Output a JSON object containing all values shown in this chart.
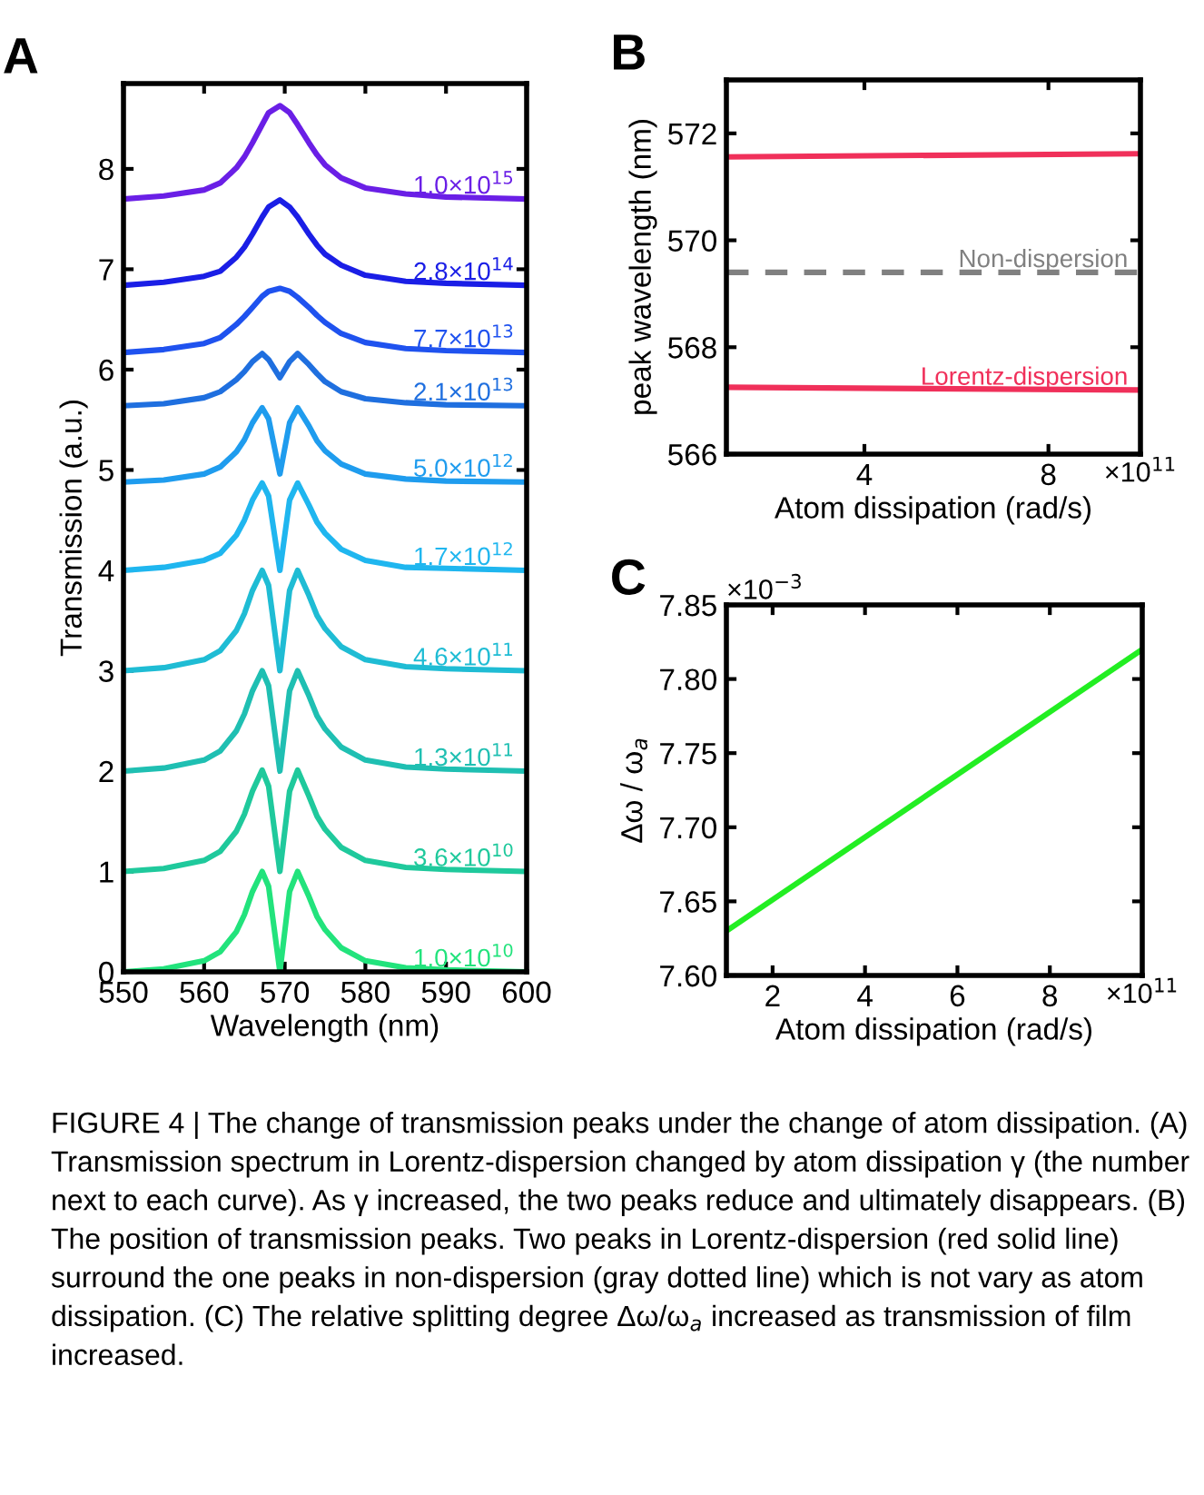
{
  "chart_data": [
    {
      "type": "line",
      "title": "A",
      "xlabel": "Wavelength (nm)",
      "ylabel": "Transmission (a.u.)",
      "xlim": [
        550,
        600
      ],
      "ylim": [
        0,
        8.85
      ],
      "xticks": [
        550,
        560,
        570,
        580,
        590,
        600
      ],
      "yticks": [
        0,
        1,
        2,
        3,
        4,
        5,
        6,
        7,
        8
      ],
      "x": [
        550,
        555,
        560,
        562,
        564,
        565,
        566,
        567.2,
        568,
        569.4,
        570.6,
        571.6,
        573,
        574,
        575,
        577,
        580,
        585,
        590,
        600
      ],
      "series": [
        {
          "name": "1.0×10$^{10}$",
          "color": "#22e37c",
          "values": [
            0,
            0.03,
            0.11,
            0.2,
            0.4,
            0.57,
            0.8,
            1.0,
            0.85,
            0,
            0.8,
            1.0,
            0.75,
            0.55,
            0.42,
            0.24,
            0.11,
            0.04,
            0.02,
            0
          ]
        },
        {
          "name": "3.6×10$^{10}$",
          "color": "#1fc99c",
          "values": [
            1,
            1.03,
            1.11,
            1.2,
            1.4,
            1.57,
            1.8,
            2.01,
            1.85,
            1.0,
            1.8,
            2.01,
            1.75,
            1.55,
            1.42,
            1.24,
            1.11,
            1.04,
            1.02,
            1.0
          ]
        },
        {
          "name": "1.3×10$^{11}$",
          "color": "#1fbfb2",
          "values": [
            2,
            2.03,
            2.11,
            2.2,
            2.4,
            2.57,
            2.8,
            3.0,
            2.85,
            2.0,
            2.8,
            3.0,
            2.75,
            2.55,
            2.42,
            2.24,
            2.11,
            2.04,
            2.02,
            2.0
          ]
        },
        {
          "name": "4.6×10$^{11}$",
          "color": "#1fbcd4",
          "values": [
            3,
            3.03,
            3.11,
            3.2,
            3.4,
            3.57,
            3.8,
            4.0,
            3.85,
            3.0,
            3.8,
            4.0,
            3.75,
            3.55,
            3.42,
            3.24,
            3.11,
            3.04,
            3.02,
            3.0
          ]
        },
        {
          "name": "1.7×10$^{12}$",
          "color": "#1fb6ef",
          "values": [
            4,
            4.03,
            4.1,
            4.17,
            4.35,
            4.5,
            4.7,
            4.87,
            4.74,
            4.0,
            4.7,
            4.87,
            4.65,
            4.48,
            4.37,
            4.21,
            4.1,
            4.03,
            4.02,
            4.0
          ]
        },
        {
          "name": "5.0×10$^{12}$",
          "color": "#1f9cee",
          "values": [
            4.88,
            4.9,
            4.96,
            5.03,
            5.18,
            5.3,
            5.47,
            5.62,
            5.51,
            4.96,
            5.47,
            5.62,
            5.44,
            5.29,
            5.19,
            5.06,
            4.96,
            4.91,
            4.89,
            4.88
          ]
        },
        {
          "name": "2.1×10$^{13}$",
          "color": "#1f6fdf",
          "values": [
            5.64,
            5.66,
            5.72,
            5.78,
            5.9,
            5.98,
            6.08,
            6.16,
            6.1,
            5.92,
            6.08,
            6.16,
            6.05,
            5.96,
            5.88,
            5.78,
            5.71,
            5.67,
            5.65,
            5.64
          ]
        },
        {
          "name": "7.7×10$^{13}$",
          "color": "#1f52ef",
          "values": [
            6.17,
            6.2,
            6.26,
            6.32,
            6.45,
            6.53,
            6.62,
            6.73,
            6.78,
            6.81,
            6.78,
            6.72,
            6.62,
            6.54,
            6.47,
            6.36,
            6.27,
            6.21,
            6.19,
            6.17
          ]
        },
        {
          "name": "2.8×10$^{14}$",
          "color": "#1a1ee6",
          "values": [
            6.84,
            6.87,
            6.93,
            6.98,
            7.12,
            7.22,
            7.35,
            7.52,
            7.62,
            7.69,
            7.62,
            7.52,
            7.35,
            7.24,
            7.15,
            7.04,
            6.94,
            6.88,
            6.86,
            6.84
          ]
        },
        {
          "name": "1.0×10$^{15}$",
          "color": "#6a1fe6",
          "values": [
            7.7,
            7.73,
            7.79,
            7.86,
            8.01,
            8.12,
            8.26,
            8.44,
            8.56,
            8.63,
            8.56,
            8.44,
            8.26,
            8.14,
            8.04,
            7.91,
            7.81,
            7.75,
            7.72,
            7.7
          ]
        }
      ]
    },
    {
      "type": "line",
      "title": "B",
      "xlabel": "Atom dissipation (rad/s)",
      "ylabel": "peak wavelength (nm)",
      "xlim": [
        1,
        10
      ],
      "ylim": [
        566,
        573
      ],
      "xticks": [
        4,
        8
      ],
      "yticks": [
        566,
        568,
        570,
        572
      ],
      "x": [
        1,
        10
      ],
      "annotations": [
        "×10$^{11}$"
      ],
      "series": [
        {
          "color": "#f0305a",
          "values": [
            571.56,
            571.62
          ]
        },
        {
          "name": "Non-dispersion",
          "color": "#808080",
          "line_style": "dashed",
          "values": [
            569.4,
            569.4
          ]
        },
        {
          "name": "Lorentz-dispersion",
          "color": "#f0305a",
          "values": [
            567.25,
            567.2
          ]
        }
      ]
    },
    {
      "type": "line",
      "title": "C",
      "xlabel": "Atom dissipation (rad/s)",
      "ylabel": "Δω / ω$_{a}$",
      "xlim": [
        1,
        10
      ],
      "ylim": [
        7.6,
        7.85
      ],
      "xticks": [
        2,
        4,
        6,
        8
      ],
      "yticks": [
        {
          "value": 7.6,
          "label": "7.60"
        },
        {
          "value": 7.65,
          "label": "7.65"
        },
        {
          "value": 7.7,
          "label": "7.70"
        },
        {
          "value": 7.75,
          "label": "7.75"
        },
        {
          "value": 7.8,
          "label": "7.80"
        },
        {
          "value": 7.85,
          "label": "7.85"
        }
      ],
      "x": [
        1,
        10
      ],
      "annotations": [
        "×10$^{11}$",
        "×10$^{−3}$"
      ],
      "series": [
        {
          "color": "#22ee22",
          "values": [
            7.63,
            7.82
          ]
        }
      ]
    },
    {
      "type": "other",
      "annotations": [
        "FIGURE 4 | The change of transmission peaks under the change of atom dissipation. (A) Transmission spectrum in Lorentz-dispersion changed by atom dissipation γ (the number next to each curve). As γ increased, the two peaks reduce and ultimately disappears. (B) The position of transmission peaks. Two peaks in Lorentz-dispersion (red solid line) surround the one peaks in non-dispersion (gray dotted line) which is not vary as atom dissipation. (C) The relative splitting degree Δω/ω$_{a}$ increased as transmission of film increased."
      ]
    }
  ]
}
